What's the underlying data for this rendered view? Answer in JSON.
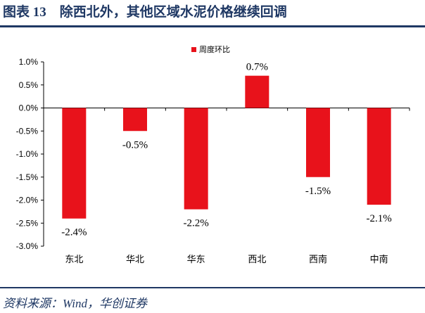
{
  "figure": {
    "title": "图表 13　除西北外，其他区域水泥价格继续回调",
    "source": "资料来源：Wind，华创证券"
  },
  "colors": {
    "bar": "#e8121b",
    "rule": "#1f3864"
  },
  "chart_data": {
    "type": "bar",
    "categories": [
      "东北",
      "华北",
      "华东",
      "西北",
      "西南",
      "中南"
    ],
    "series": [
      {
        "name": "周度环比",
        "values": [
          -2.4,
          -0.5,
          -2.2,
          0.7,
          -1.5,
          -2.1
        ]
      }
    ],
    "data_labels": [
      "-2.4%",
      "-0.5%",
      "-2.2%",
      "0.7%",
      "-1.5%",
      "-2.1%"
    ],
    "yticks": [
      "1.0%",
      "0.5%",
      "0.0%",
      "-0.5%",
      "-1.0%",
      "-1.5%",
      "-2.0%",
      "-2.5%",
      "-3.0%"
    ],
    "ylim": [
      -3.0,
      1.0
    ],
    "legend": "top-center",
    "grid": false
  }
}
